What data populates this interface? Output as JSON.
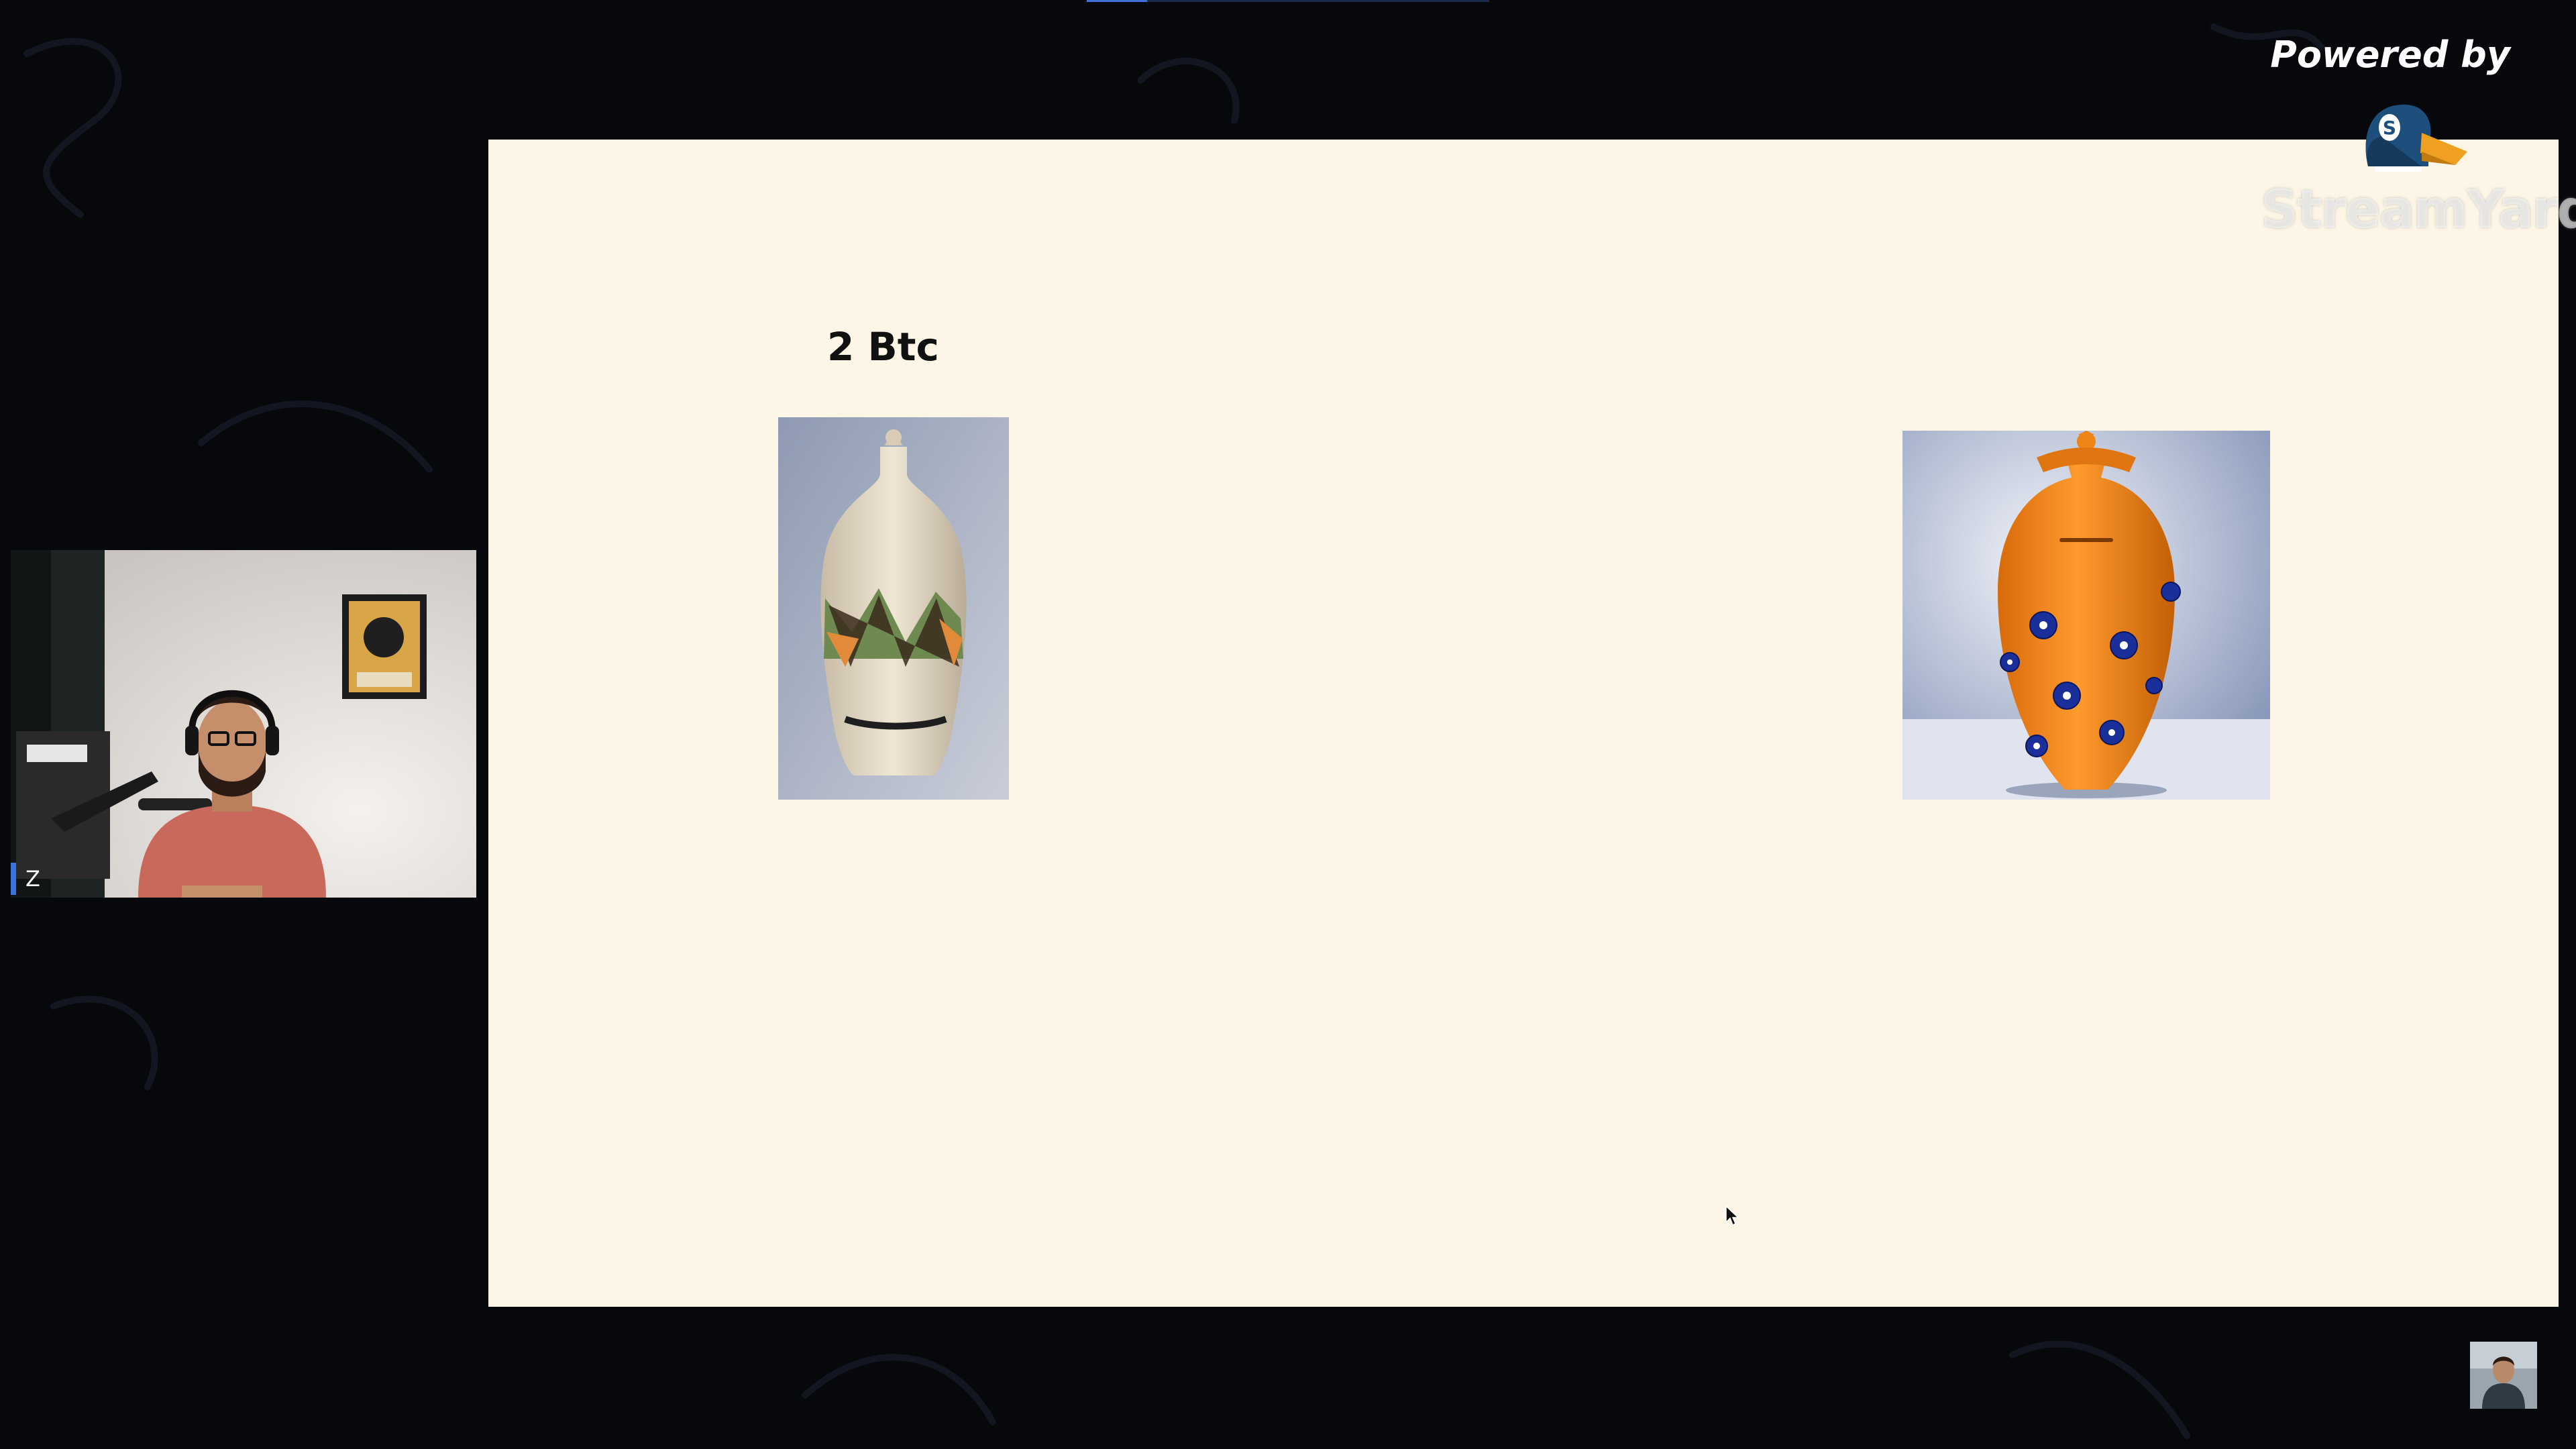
{
  "branding": {
    "powered_by": "Powered by",
    "wordmark": "StreamYard",
    "logo_icon": "streamyard-duck-logo-icon"
  },
  "slide": {
    "label": "2 Btc",
    "left_image": "cream-vase-with-geometric-pattern",
    "right_image": "orange-vase-with-blue-flowers"
  },
  "participant": {
    "name_tag": "Z"
  },
  "progress": {
    "value": 0.15
  },
  "colors": {
    "background": "#07080b",
    "slide": "#fdf6e6",
    "accent": "#3b73e0",
    "orange_vase": "#f28a1c"
  }
}
